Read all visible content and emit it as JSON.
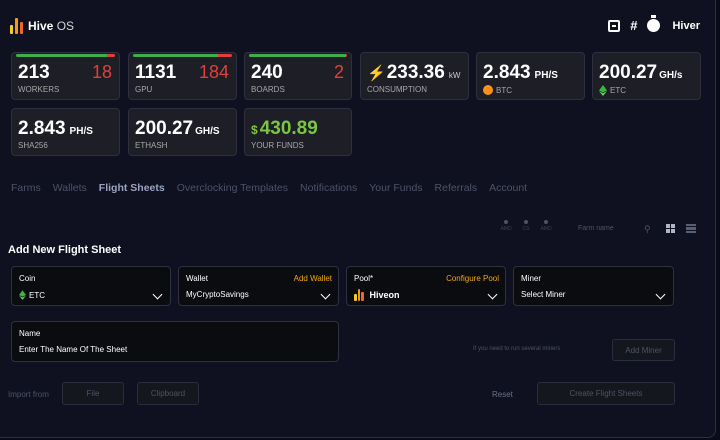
{
  "app": {
    "name": "Hive",
    "name_suffix": "OS",
    "user": "Hiver",
    "brand_colors": [
      "#f7c92b",
      "#f39a1d",
      "#ef6a1f"
    ]
  },
  "header_icons": [
    "add-square-icon",
    "hash-icon",
    "stopwatch-icon"
  ],
  "stats": {
    "workers": {
      "value": "213",
      "alt": "18",
      "label": "WORKERS",
      "online_fraction": 0.92
    },
    "gpu": {
      "value": "1131",
      "alt": "184",
      "label": "GPU",
      "online_fraction": 0.86
    },
    "boards": {
      "value": "240",
      "alt": "2",
      "label": "BOARDS",
      "online_fraction": 0.99
    },
    "consumption": {
      "value": "233.36",
      "unit": "kW",
      "label": "CONSUMPTION"
    },
    "btc": {
      "value": "2.843",
      "unit": "PH/S",
      "label": "BTC"
    },
    "etc": {
      "value": "200.27",
      "unit": "GH/s",
      "label": "ETC"
    },
    "sha256": {
      "value": "2.843",
      "unit": "PH/S",
      "label": "SHA256"
    },
    "ethash": {
      "value": "200.27",
      "unit": "GH/S",
      "label": "ETHASH"
    },
    "funds": {
      "currency": "$",
      "value": "430.89",
      "label": "YOUR FUNDS"
    }
  },
  "nav": {
    "tabs": [
      "Farms",
      "Wallets",
      "Flight Sheets",
      "Overclocking Templates",
      "Notifications",
      "Your Funds",
      "Referrals",
      "Account"
    ],
    "active": "Flight Sheets"
  },
  "filters": {
    "dots": [
      "AMD",
      "CS",
      "AMD"
    ],
    "search_placeholder": "Farm name"
  },
  "form": {
    "title": "Add New Flight Sheet",
    "coin": {
      "label": "Coin",
      "value": "ETC"
    },
    "wallet": {
      "label": "Wallet",
      "action": "Add Wallet",
      "value": "MyCryptoSavings"
    },
    "pool": {
      "label": "Pool*",
      "action": "Configure Pool",
      "value": "Hiveon"
    },
    "miner": {
      "label": "Miner",
      "value": "Select Miner"
    },
    "name": {
      "label": "Name",
      "placeholder": "Enter The Name Of The Sheet"
    },
    "hint": "If you need to run several miners",
    "add_miner": "Add Miner",
    "import_label": "Import from",
    "file_btn": "File",
    "clipboard_btn": "Clipboard",
    "reset": "Reset",
    "create_btn": "Create Flight Sheets"
  }
}
